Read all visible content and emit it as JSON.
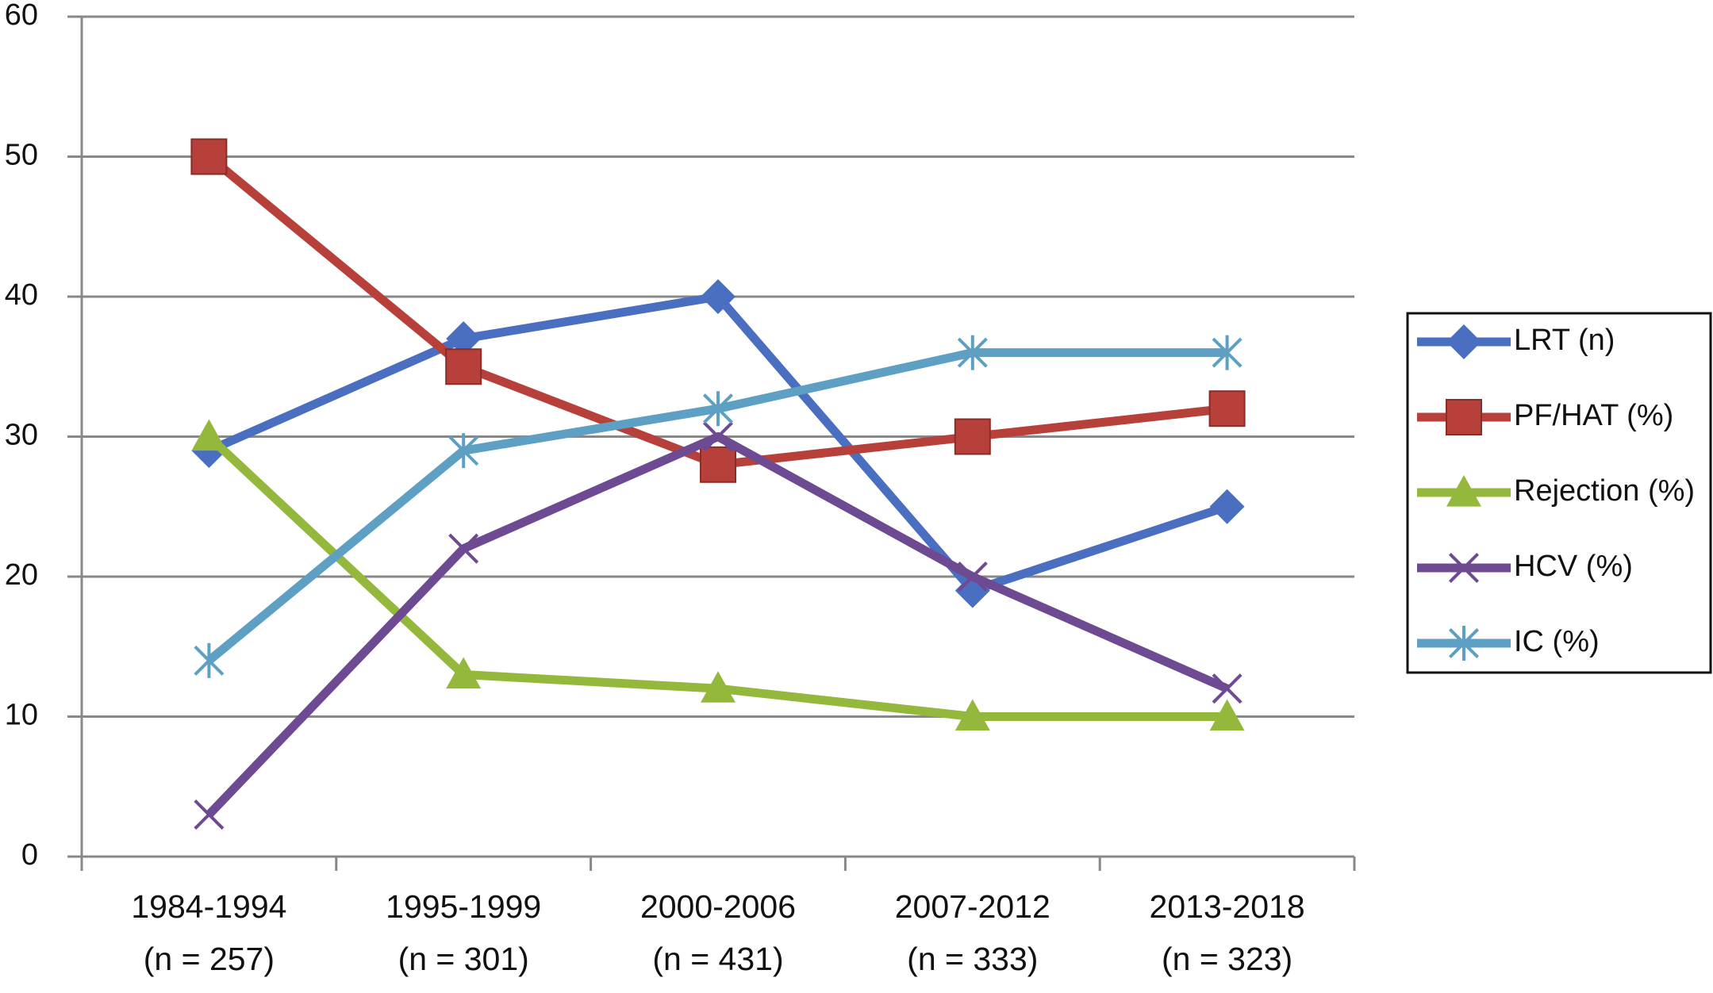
{
  "chart_data": {
    "type": "line",
    "categories": [
      [
        "1984-1994",
        "(n = 257)"
      ],
      [
        "1995-1999",
        "(n = 301)"
      ],
      [
        "2000-2006",
        "(n = 431)"
      ],
      [
        "2007-2012",
        "(n = 333)"
      ],
      [
        "2013-2018",
        "(n = 323)"
      ]
    ],
    "series": [
      {
        "name": "LRT (n)",
        "color": "#4a6fc1",
        "marker": "diamond",
        "values": [
          29,
          37,
          40,
          19,
          25
        ]
      },
      {
        "name": "PF/HAT (%)",
        "color": "#b8403a",
        "marker": "square",
        "values": [
          50,
          35,
          28,
          30,
          32
        ]
      },
      {
        "name": "Rejection (%)",
        "color": "#94b83c",
        "marker": "triangle",
        "values": [
          30,
          13,
          12,
          10,
          10
        ]
      },
      {
        "name": "HCV (%)",
        "color": "#6e4a93",
        "marker": "x",
        "values": [
          3,
          22,
          30,
          20,
          12
        ]
      },
      {
        "name": "IC (%)",
        "color": "#5ea0c4",
        "marker": "asterisk",
        "values": [
          14,
          29,
          32,
          36,
          36
        ]
      }
    ],
    "ylim": [
      0,
      60
    ],
    "yticks": [
      0,
      10,
      20,
      30,
      40,
      50,
      60
    ],
    "grid": true,
    "legend": "right"
  }
}
